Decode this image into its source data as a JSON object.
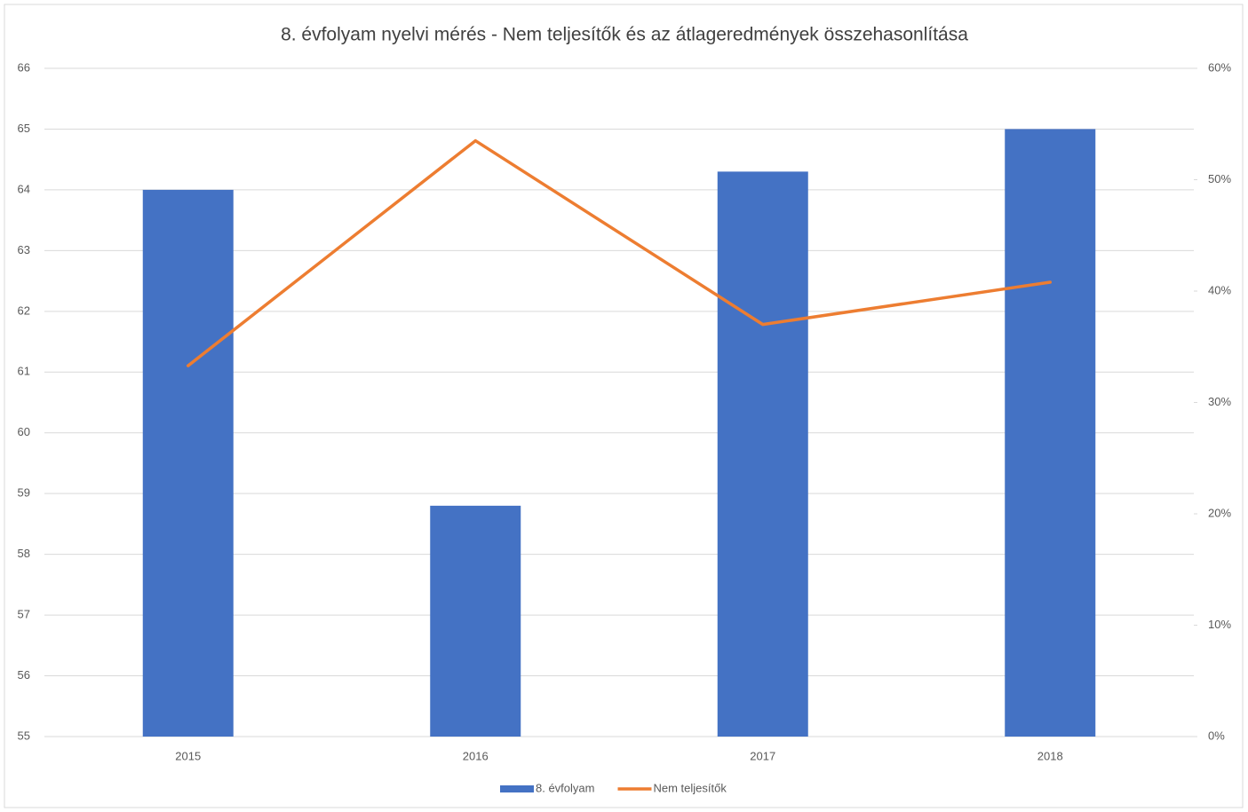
{
  "chart_data": {
    "type": "bar",
    "title": "8. évfolyam nyelvi mérés - Nem teljesítők és az átlageredmények összehasonlítása",
    "categories": [
      "2015",
      "2016",
      "2017",
      "2018"
    ],
    "series": [
      {
        "name": "8. évfolyam",
        "color": "#4472c4",
        "type": "bar",
        "values": [
          64.0,
          58.8,
          64.3,
          65.0
        ]
      },
      {
        "name": "Nem teljesítők",
        "color": "#ed7d31",
        "type": "line",
        "axis": "y2",
        "values": [
          33.3,
          53.5,
          37.0,
          40.8
        ]
      }
    ],
    "ylim": [
      55,
      66
    ],
    "yticks": [
      55,
      56,
      57,
      58,
      59,
      60,
      61,
      62,
      63,
      64,
      65,
      66
    ],
    "y2lim": [
      0,
      60
    ],
    "y2ticks": [
      {
        "value": 0,
        "label": "0%"
      },
      {
        "value": 10,
        "label": "10%"
      },
      {
        "value": 20,
        "label": "20%"
      },
      {
        "value": 30,
        "label": "30%"
      },
      {
        "value": 40,
        "label": "40%"
      },
      {
        "value": 50,
        "label": "50%"
      },
      {
        "value": 60,
        "label": "60%"
      }
    ],
    "grid": true,
    "legend": "bottom"
  }
}
